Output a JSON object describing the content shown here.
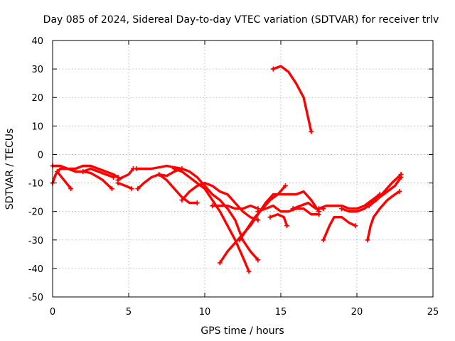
{
  "chart_data": {
    "type": "scatter",
    "title": "Day 085 of 2024, Sidereal Day-to-day VTEC variation (SDTVAR) for receiver trlv",
    "xlabel": "GPS time / hours",
    "ylabel": "SDTVAR / TECUs",
    "xlim": [
      0,
      25
    ],
    "ylim": [
      -50,
      40
    ],
    "xticks": [
      0,
      5,
      10,
      15,
      20,
      25
    ],
    "yticks": [
      -50,
      -40,
      -30,
      -20,
      -10,
      0,
      10,
      20,
      30,
      40
    ],
    "grid": true,
    "marker": "plus",
    "color": "#ff0000",
    "series": [
      {
        "name": "s1",
        "points": [
          [
            0,
            -10
          ],
          [
            0.2,
            -7
          ],
          [
            0.5,
            -5
          ],
          [
            1.0,
            -5
          ],
          [
            1.5,
            -6
          ],
          [
            2.0,
            -6
          ],
          [
            2.5,
            -5
          ],
          [
            3.0,
            -6
          ],
          [
            3.5,
            -7
          ],
          [
            4.0,
            -8
          ]
        ]
      },
      {
        "name": "s2",
        "points": [
          [
            0,
            -4
          ],
          [
            0.5,
            -4
          ],
          [
            1.0,
            -5
          ],
          [
            1.5,
            -5
          ],
          [
            2.0,
            -4
          ],
          [
            2.5,
            -4
          ],
          [
            3.0,
            -5
          ],
          [
            3.5,
            -6
          ],
          [
            4.0,
            -7
          ],
          [
            4.3,
            -8
          ]
        ]
      },
      {
        "name": "s3",
        "points": [
          [
            0.3,
            -6
          ],
          [
            0.6,
            -8
          ],
          [
            0.9,
            -10
          ],
          [
            1.2,
            -12
          ]
        ]
      },
      {
        "name": "s4",
        "points": [
          [
            2.0,
            -6
          ],
          [
            2.5,
            -6.5
          ],
          [
            3.0,
            -8
          ],
          [
            3.3,
            -9
          ],
          [
            3.6,
            -10.5
          ],
          [
            3.9,
            -12
          ]
        ]
      },
      {
        "name": "s5",
        "points": [
          [
            4.3,
            -9
          ],
          [
            4.6,
            -8
          ],
          [
            5.0,
            -7
          ],
          [
            5.3,
            -5
          ]
        ]
      },
      {
        "name": "s6",
        "points": [
          [
            4.3,
            -10
          ],
          [
            4.8,
            -11
          ],
          [
            5.2,
            -12
          ]
        ]
      },
      {
        "name": "s7",
        "points": [
          [
            5.6,
            -12
          ],
          [
            6.0,
            -10
          ],
          [
            6.5,
            -8
          ],
          [
            7.0,
            -7
          ],
          [
            7.5,
            -7.5
          ],
          [
            8.0,
            -6
          ],
          [
            8.5,
            -5
          ]
        ]
      },
      {
        "name": "s8",
        "points": [
          [
            5.5,
            -5
          ],
          [
            6.5,
            -5
          ],
          [
            7.5,
            -4
          ],
          [
            8.5,
            -5
          ],
          [
            9.0,
            -6
          ],
          [
            9.5,
            -8
          ],
          [
            10.0,
            -11
          ],
          [
            10.5,
            -14
          ],
          [
            11.0,
            -16
          ],
          [
            11.5,
            -19
          ],
          [
            12.0,
            -23
          ],
          [
            12.5,
            -30
          ],
          [
            13.0,
            -34
          ],
          [
            13.5,
            -37
          ]
        ]
      },
      {
        "name": "s9",
        "points": [
          [
            7.0,
            -7
          ],
          [
            7.5,
            -9
          ],
          [
            8.0,
            -12
          ],
          [
            8.5,
            -15
          ],
          [
            9.0,
            -17
          ],
          [
            9.5,
            -17
          ]
        ]
      },
      {
        "name": "s10",
        "points": [
          [
            8.0,
            -5
          ],
          [
            8.5,
            -6
          ],
          [
            9.0,
            -8
          ],
          [
            9.5,
            -10
          ],
          [
            10.0,
            -12
          ],
          [
            10.5,
            -16
          ],
          [
            11.0,
            -20
          ],
          [
            11.5,
            -25
          ],
          [
            12.0,
            -30
          ],
          [
            12.5,
            -36
          ],
          [
            12.9,
            -41
          ]
        ]
      },
      {
        "name": "s11",
        "points": [
          [
            8.5,
            -16
          ],
          [
            9.0,
            -13
          ],
          [
            9.5,
            -11
          ],
          [
            10.0,
            -10
          ],
          [
            10.5,
            -11
          ],
          [
            11.0,
            -13
          ],
          [
            11.5,
            -14
          ],
          [
            12.0,
            -17
          ],
          [
            12.5,
            -20
          ],
          [
            13.0,
            -22
          ],
          [
            13.5,
            -23
          ]
        ]
      },
      {
        "name": "s12",
        "points": [
          [
            10.5,
            -18
          ],
          [
            11.0,
            -18
          ],
          [
            11.5,
            -18
          ],
          [
            12.0,
            -19
          ],
          [
            12.5,
            -19
          ],
          [
            13.0,
            -18
          ],
          [
            13.5,
            -19
          ]
        ]
      },
      {
        "name": "s13",
        "points": [
          [
            11.0,
            -38
          ],
          [
            11.5,
            -34
          ],
          [
            12.0,
            -31
          ],
          [
            12.5,
            -28
          ],
          [
            13.0,
            -25
          ],
          [
            13.5,
            -21
          ],
          [
            14.0,
            -17
          ],
          [
            14.5,
            -14
          ],
          [
            15.0,
            -14
          ],
          [
            15.5,
            -14
          ],
          [
            16.0,
            -14
          ],
          [
            16.5,
            -13
          ],
          [
            17.0,
            -16
          ],
          [
            17.5,
            -20
          ]
        ]
      },
      {
        "name": "s14",
        "points": [
          [
            12.3,
            -30
          ],
          [
            12.8,
            -26
          ],
          [
            13.3,
            -22
          ],
          [
            13.8,
            -19
          ],
          [
            14.3,
            -16
          ],
          [
            14.8,
            -14
          ],
          [
            15.3,
            -11
          ]
        ]
      },
      {
        "name": "s15",
        "points": [
          [
            13.5,
            -20
          ],
          [
            14.0,
            -19
          ],
          [
            14.5,
            -18
          ],
          [
            15.0,
            -20
          ],
          [
            15.5,
            -20
          ],
          [
            16.0,
            -19
          ],
          [
            16.5,
            -19
          ],
          [
            17.0,
            -21
          ],
          [
            17.5,
            -21
          ]
        ]
      },
      {
        "name": "s16",
        "points": [
          [
            14.3,
            -22
          ],
          [
            14.8,
            -21
          ],
          [
            15.2,
            -22
          ],
          [
            15.4,
            -25
          ]
        ]
      },
      {
        "name": "s17",
        "points": [
          [
            15.8,
            -19
          ],
          [
            16.3,
            -18
          ],
          [
            16.8,
            -17
          ],
          [
            17.3,
            -19
          ],
          [
            17.8,
            -19
          ]
        ]
      },
      {
        "name": "s18",
        "points": [
          [
            14.5,
            30
          ],
          [
            15.0,
            31
          ],
          [
            15.5,
            29
          ],
          [
            16.0,
            25
          ],
          [
            16.5,
            20
          ],
          [
            17.0,
            8
          ]
        ]
      },
      {
        "name": "s19",
        "points": [
          [
            17.8,
            -30
          ],
          [
            18.2,
            -25
          ],
          [
            18.5,
            -22
          ],
          [
            19.0,
            -22
          ],
          [
            19.5,
            -24
          ],
          [
            19.9,
            -25
          ]
        ]
      },
      {
        "name": "s20",
        "points": [
          [
            17.5,
            -19
          ],
          [
            18.0,
            -18
          ],
          [
            18.5,
            -18
          ],
          [
            19.0,
            -18
          ],
          [
            19.5,
            -19
          ],
          [
            20.0,
            -19
          ],
          [
            20.5,
            -18
          ],
          [
            21.0,
            -16
          ],
          [
            21.5,
            -14
          ]
        ]
      },
      {
        "name": "s21",
        "points": [
          [
            19.0,
            -19
          ],
          [
            19.5,
            -20
          ],
          [
            20.0,
            -20
          ],
          [
            20.5,
            -19
          ],
          [
            21.0,
            -17
          ],
          [
            21.5,
            -15
          ],
          [
            22.0,
            -13
          ],
          [
            22.5,
            -11
          ],
          [
            22.9,
            -8
          ]
        ]
      },
      {
        "name": "s22",
        "points": [
          [
            20.7,
            -30
          ],
          [
            20.9,
            -25
          ],
          [
            21.1,
            -22
          ],
          [
            21.5,
            -19
          ],
          [
            22.0,
            -16
          ],
          [
            22.5,
            -14
          ],
          [
            22.8,
            -13
          ]
        ]
      },
      {
        "name": "s23",
        "points": [
          [
            20.8,
            -18
          ],
          [
            21.3,
            -16
          ],
          [
            21.8,
            -13
          ],
          [
            22.3,
            -10
          ],
          [
            22.9,
            -7
          ]
        ]
      }
    ]
  }
}
